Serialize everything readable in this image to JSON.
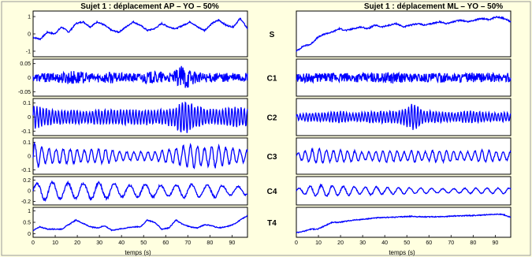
{
  "colors": {
    "background": "#ffffe0",
    "signal": "#0000ff",
    "axis": "#000000"
  },
  "chart_data": {
    "type": "line",
    "columns": [
      {
        "title": "Sujet 1  : déplacement  AP – YO – 50%",
        "xlabel": "temps (s)"
      },
      {
        "title": "Sujet 1  : déplacement  ML – YO – 50%",
        "xlabel": "temps (s)"
      }
    ],
    "xlim": [
      0,
      97
    ],
    "xticks": [
      "0",
      "10",
      "20",
      "30",
      "40",
      "50",
      "60",
      "70",
      "80",
      "90"
    ],
    "rows": [
      {
        "label": "S",
        "yticks": [
          "1",
          "0",
          "-1"
        ],
        "series": [
          {
            "name": "AP",
            "y": [
              -0.2,
              -0.3,
              0.1,
              0.0,
              0.4,
              0.1,
              0.6,
              0.7,
              0.4,
              0.7,
              0.5,
              0.2,
              0.1,
              0.4,
              0.7,
              0.5,
              0.2,
              0.3,
              0.6,
              0.4,
              0.3,
              0.5,
              0.7,
              0.4,
              0.2,
              0.6,
              0.8,
              0.5,
              0.4,
              0.9,
              0.3
            ]
          },
          {
            "name": "ML",
            "y": [
              -1.0,
              -0.7,
              -0.6,
              -0.2,
              0.0,
              0.1,
              0.3,
              0.2,
              0.3,
              0.4,
              0.3,
              0.5,
              0.4,
              0.5,
              0.6,
              0.4,
              0.5,
              0.6,
              0.5,
              0.6,
              0.7,
              0.6,
              0.7,
              0.8,
              0.7,
              0.8,
              0.9,
              0.8,
              1.0,
              0.9,
              0.7
            ]
          }
        ]
      },
      {
        "label": "C1",
        "yticks": [
          "0.05",
          "0",
          "-0.05"
        ],
        "series": [
          {
            "name": "AP",
            "kind": "noise",
            "amp": [
              0.012,
              0.015,
              0.015,
              0.02,
              0.025,
              0.015,
              0.015,
              0.02,
              0.015,
              0.015,
              0.015,
              0.02,
              0.02,
              0.015,
              0.045,
              0.02,
              0.015,
              0.015,
              0.015,
              0.015,
              0.015
            ]
          },
          {
            "name": "ML",
            "kind": "noise",
            "amp": [
              0.015,
              0.015,
              0.015,
              0.015,
              0.015,
              0.015,
              0.015,
              0.015,
              0.015,
              0.02,
              0.015,
              0.015,
              0.015,
              0.015,
              0.015,
              0.015,
              0.015,
              0.015,
              0.015,
              0.015,
              0.015
            ]
          }
        ]
      },
      {
        "label": "C2",
        "yticks": [
          "0.1",
          "0",
          "-0.1"
        ],
        "series": [
          {
            "name": "AP",
            "kind": "osc",
            "period": 1.4,
            "amp": [
              0.08,
              0.06,
              0.05,
              0.05,
              0.05,
              0.04,
              0.05,
              0.05,
              0.05,
              0.05,
              0.05,
              0.05,
              0.05,
              0.06,
              0.12,
              0.08,
              0.06,
              0.05,
              0.06,
              0.07,
              0.06
            ]
          },
          {
            "name": "ML",
            "kind": "osc",
            "period": 1.4,
            "amp": [
              0.02,
              0.03,
              0.03,
              0.03,
              0.04,
              0.03,
              0.03,
              0.04,
              0.04,
              0.04,
              0.05,
              0.09,
              0.04,
              0.04,
              0.03,
              0.03,
              0.04,
              0.04,
              0.03,
              0.03,
              0.03
            ]
          }
        ]
      },
      {
        "label": "C3",
        "yticks": [
          "0.1",
          "0",
          "-0.1"
        ],
        "series": [
          {
            "name": "AP",
            "kind": "osc",
            "period": 3.2,
            "amp": [
              0.1,
              0.05,
              0.05,
              0.05,
              0.05,
              0.04,
              0.05,
              0.05,
              0.03,
              0.03,
              0.03,
              0.03,
              0.04,
              0.05,
              0.07,
              0.08,
              0.06,
              0.08,
              0.06,
              0.05,
              0.04
            ]
          },
          {
            "name": "ML",
            "kind": "osc",
            "period": 3.2,
            "amp": [
              0.02,
              0.04,
              0.05,
              0.04,
              0.04,
              0.04,
              0.03,
              0.03,
              0.04,
              0.04,
              0.03,
              0.04,
              0.03,
              0.04,
              0.04,
              0.03,
              0.03,
              0.04,
              0.04,
              0.03,
              0.03
            ]
          }
        ]
      },
      {
        "label": "C4",
        "yticks": [
          "0.2",
          "0",
          "-0.2"
        ],
        "series": [
          {
            "name": "AP",
            "kind": "osc",
            "period": 7,
            "amp": [
              0.12,
              0.16,
              0.16,
              0.14,
              0.14,
              0.14,
              0.16,
              0.14,
              0.12,
              0.1,
              0.12,
              0.12,
              0.1,
              0.1,
              0.12,
              0.12,
              0.1,
              0.12,
              0.08,
              0.08,
              0.08
            ]
          },
          {
            "name": "ML",
            "kind": "osc",
            "period": 5,
            "amp": [
              0.04,
              0.08,
              0.1,
              0.1,
              0.08,
              0.08,
              0.06,
              0.08,
              0.06,
              0.06,
              0.06,
              0.05,
              0.05,
              0.04,
              0.04,
              0.04,
              0.05,
              0.05,
              0.05,
              0.05,
              0.05
            ]
          }
        ]
      },
      {
        "label": "T4",
        "yticks": [
          "1",
          "0.5",
          "0"
        ],
        "series": [
          {
            "name": "AP",
            "y": [
              0.15,
              0.3,
              0.2,
              0.2,
              0.2,
              0.4,
              0.6,
              0.45,
              0.3,
              0.25,
              0.35,
              0.15,
              0.2,
              0.25,
              0.3,
              0.3,
              0.6,
              0.5,
              0.2,
              0.25,
              0.6,
              0.4,
              0.3,
              0.25,
              0.4,
              0.35,
              0.25,
              0.3,
              0.4,
              0.6,
              0.8
            ]
          },
          {
            "name": "ML",
            "y": [
              0.05,
              0.1,
              0.2,
              0.2,
              0.35,
              0.5,
              0.5,
              0.55,
              0.6,
              0.62,
              0.65,
              0.7,
              0.7,
              0.72,
              0.73,
              0.75,
              0.76,
              0.75,
              0.74,
              0.74,
              0.75,
              0.76,
              0.78,
              0.78,
              0.8,
              0.8,
              0.82,
              0.84,
              0.86,
              0.84,
              0.72
            ]
          }
        ]
      }
    ]
  }
}
